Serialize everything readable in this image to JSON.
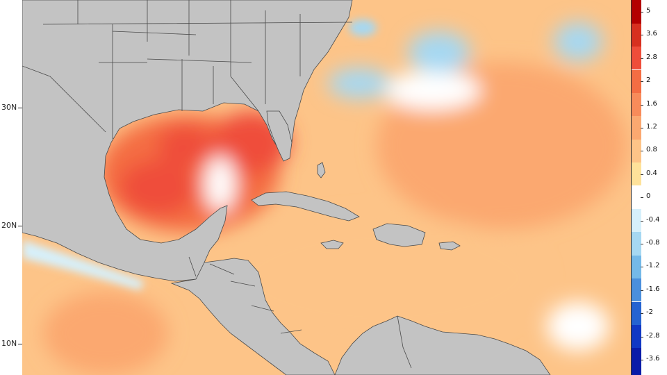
{
  "map": {
    "latitude_labels": [
      "30N",
      "20N",
      "10N"
    ],
    "colors": {
      "land": "#c3c3c3",
      "border": "#4a4a4a",
      "neutral": "#ffffff"
    },
    "regions": {
      "gulf_of_mexico": 1.9,
      "western_gulf_core": 2.6,
      "eastern_gulf_core": 2.5,
      "caribbean": 0.9,
      "western_atlantic": 1.0,
      "mid_atlantic_cold_patch": -0.7,
      "eastern_pacific_coastal_strip": -0.6,
      "eastern_pacific_offshore": 1.1
    }
  },
  "colorbar": {
    "labels": [
      "5",
      "3.6",
      "2.8",
      "2",
      "1.6",
      "1.2",
      "0.8",
      "0.4",
      "0",
      "-0.4",
      "-0.8",
      "-1.2",
      "-1.6",
      "-2",
      "-2.8",
      "-3.6"
    ],
    "colors": [
      "#b30000",
      "#d7301f",
      "#ef4d3a",
      "#f46d43",
      "#f88b5a",
      "#fba870",
      "#fdc488",
      "#fee29a",
      "#ffffff",
      "#d6f0fb",
      "#a6d8f2",
      "#74b9e8",
      "#4a8fdc",
      "#2563d1",
      "#1138c4",
      "#0a1ba8"
    ]
  }
}
